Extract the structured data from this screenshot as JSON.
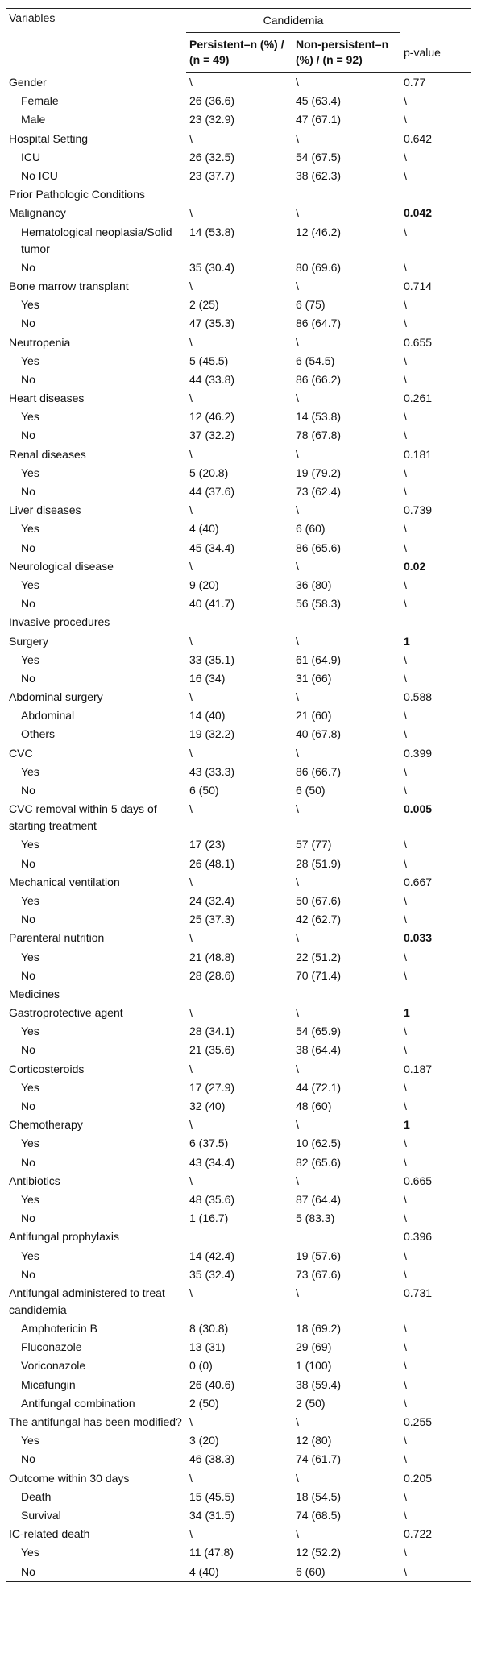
{
  "header": {
    "variables": "Variables",
    "group": "Candidemia",
    "persistent": "Persistent–n (%) / (n = 49)",
    "non_persistent": "Non-persistent–n (%) / (n = 92)",
    "p_value": "p-value"
  },
  "groups": [
    {
      "label": "Gender",
      "persistent": "\\",
      "non_persistent": "\\",
      "p": "0.77",
      "items": [
        {
          "label": "Female",
          "persistent": "26 (36.6)",
          "non_persistent": "45 (63.4)",
          "p": "\\"
        },
        {
          "label": "Male",
          "persistent": "23 (32.9)",
          "non_persistent": "47 (67.1)",
          "p": "\\"
        }
      ]
    },
    {
      "label": "Hospital Setting",
      "persistent": "\\",
      "non_persistent": "\\",
      "p": "0.642",
      "items": [
        {
          "label": "ICU",
          "persistent": "26 (32.5)",
          "non_persistent": "54 (67.5)",
          "p": "\\"
        },
        {
          "label": "No ICU",
          "persistent": "23 (37.7)",
          "non_persistent": "38 (62.3)",
          "p": "\\"
        }
      ]
    },
    {
      "label": "Prior Pathologic Conditions"
    },
    {
      "label": "Malignancy",
      "persistent": "\\",
      "non_persistent": "\\",
      "p": "0.042",
      "bold_p": true,
      "items": [
        {
          "label": "Hematological neoplasia/Solid tumor",
          "persistent": "14 (53.8)",
          "non_persistent": "12 (46.2)",
          "p": "\\"
        },
        {
          "label": "No",
          "persistent": "35 (30.4)",
          "non_persistent": "80 (69.6)",
          "p": "\\"
        }
      ]
    },
    {
      "label": "Bone marrow transplant",
      "persistent": "\\",
      "non_persistent": "\\",
      "p": "0.714",
      "items": [
        {
          "label": "Yes",
          "persistent": "2 (25)",
          "non_persistent": "6 (75)",
          "p": "\\"
        },
        {
          "label": "No",
          "persistent": "47 (35.3)",
          "non_persistent": "86 (64.7)",
          "p": "\\"
        }
      ]
    },
    {
      "label": "Neutropenia",
      "persistent": "\\",
      "non_persistent": "\\",
      "p": "0.655",
      "items": [
        {
          "label": "Yes",
          "persistent": "5 (45.5)",
          "non_persistent": "6 (54.5)",
          "p": "\\"
        },
        {
          "label": "No",
          "persistent": "44 (33.8)",
          "non_persistent": "86 (66.2)",
          "p": "\\"
        }
      ]
    },
    {
      "label": "Heart diseases",
      "persistent": "\\",
      "non_persistent": "\\",
      "p": "0.261",
      "items": [
        {
          "label": "Yes",
          "persistent": "12 (46.2)",
          "non_persistent": "14 (53.8)",
          "p": "\\"
        },
        {
          "label": "No",
          "persistent": "37 (32.2)",
          "non_persistent": "78 (67.8)",
          "p": "\\"
        }
      ]
    },
    {
      "label": "Renal diseases",
      "persistent": "\\",
      "non_persistent": "\\",
      "p": "0.181",
      "items": [
        {
          "label": "Yes",
          "persistent": "5 (20.8)",
          "non_persistent": "19 (79.2)",
          "p": "\\"
        },
        {
          "label": "No",
          "persistent": "44 (37.6)",
          "non_persistent": "73 (62.4)",
          "p": "\\"
        }
      ]
    },
    {
      "label": "Liver diseases",
      "persistent": "\\",
      "non_persistent": "\\",
      "p": "0.739",
      "items": [
        {
          "label": "Yes",
          "persistent": "4 (40)",
          "non_persistent": "6 (60)",
          "p": "\\"
        },
        {
          "label": "No",
          "persistent": "45 (34.4)",
          "non_persistent": "86 (65.6)",
          "p": "\\"
        }
      ]
    },
    {
      "label": "Neurological disease",
      "persistent": "\\",
      "non_persistent": "\\",
      "p": "0.02",
      "bold_p": true,
      "items": [
        {
          "label": "Yes",
          "persistent": "9 (20)",
          "non_persistent": "36 (80)",
          "p": "\\"
        },
        {
          "label": "No",
          "persistent": "40 (41.7)",
          "non_persistent": "56 (58.3)",
          "p": "\\"
        }
      ]
    },
    {
      "label": "Invasive procedures"
    },
    {
      "label": "Surgery",
      "persistent": "\\",
      "non_persistent": "\\",
      "p": "1",
      "bold_p": true,
      "items": [
        {
          "label": "Yes",
          "persistent": "33 (35.1)",
          "non_persistent": "61 (64.9)",
          "p": "\\"
        },
        {
          "label": "No",
          "persistent": "16 (34)",
          "non_persistent": "31 (66)",
          "p": "\\"
        }
      ]
    },
    {
      "label": "Abdominal surgery",
      "persistent": "\\",
      "non_persistent": "\\",
      "p": "0.588",
      "items": [
        {
          "label": "Abdominal",
          "persistent": "14 (40)",
          "non_persistent": "21 (60)",
          "p": "\\"
        },
        {
          "label": "Others",
          "persistent": "19 (32.2)",
          "non_persistent": "40 (67.8)",
          "p": "\\"
        }
      ]
    },
    {
      "label": "CVC",
      "persistent": "\\",
      "non_persistent": "\\",
      "p": "0.399",
      "items": [
        {
          "label": "Yes",
          "persistent": "43 (33.3)",
          "non_persistent": "86 (66.7)",
          "p": "\\"
        },
        {
          "label": "No",
          "persistent": "6 (50)",
          "non_persistent": "6 (50)",
          "p": "\\"
        }
      ]
    },
    {
      "label": "CVC removal within 5 days of starting treatment",
      "persistent": "\\",
      "non_persistent": "\\",
      "p": "0.005",
      "bold_p": true,
      "items": [
        {
          "label": "Yes",
          "persistent": "17 (23)",
          "non_persistent": "57 (77)",
          "p": "\\"
        },
        {
          "label": "No",
          "persistent": "26 (48.1)",
          "non_persistent": "28 (51.9)",
          "p": "\\"
        }
      ]
    },
    {
      "label": "Mechanical ventilation",
      "persistent": "\\",
      "non_persistent": "\\",
      "p": "0.667",
      "items": [
        {
          "label": "Yes",
          "persistent": "24 (32.4)",
          "non_persistent": "50 (67.6)",
          "p": "\\"
        },
        {
          "label": "No",
          "persistent": "25 (37.3)",
          "non_persistent": "42 (62.7)",
          "p": "\\"
        }
      ]
    },
    {
      "label": "Parenteral nutrition",
      "persistent": "\\",
      "non_persistent": "\\",
      "p": "0.033",
      "bold_p": true,
      "items": [
        {
          "label": "Yes",
          "persistent": "21 (48.8)",
          "non_persistent": "22 (51.2)",
          "p": "\\"
        },
        {
          "label": "No",
          "persistent": "28 (28.6)",
          "non_persistent": "70 (71.4)",
          "p": "\\"
        }
      ]
    },
    {
      "label": "Medicines"
    },
    {
      "label": "Gastroprotective agent",
      "persistent": "\\",
      "non_persistent": "\\",
      "p": "1",
      "bold_p": true,
      "items": [
        {
          "label": "Yes",
          "persistent": "28 (34.1)",
          "non_persistent": "54 (65.9)",
          "p": "\\"
        },
        {
          "label": "No",
          "persistent": "21 (35.6)",
          "non_persistent": "38 (64.4)",
          "p": "\\"
        }
      ]
    },
    {
      "label": "Corticosteroids",
      "persistent": "\\",
      "non_persistent": "\\",
      "p": "0.187",
      "items": [
        {
          "label": "Yes",
          "persistent": "17 (27.9)",
          "non_persistent": "44 (72.1)",
          "p": "\\"
        },
        {
          "label": "No",
          "persistent": "32 (40)",
          "non_persistent": "48 (60)",
          "p": "\\"
        }
      ]
    },
    {
      "label": "Chemotherapy",
      "persistent": "\\",
      "non_persistent": "\\",
      "p": "1",
      "bold_p": true,
      "items": [
        {
          "label": "Yes",
          "persistent": "6 (37.5)",
          "non_persistent": "10 (62.5)",
          "p": "\\"
        },
        {
          "label": "No",
          "persistent": "43 (34.4)",
          "non_persistent": "82 (65.6)",
          "p": "\\"
        }
      ]
    },
    {
      "label": "Antibiotics",
      "persistent": "\\",
      "non_persistent": "\\",
      "p": "0.665",
      "items": [
        {
          "label": "Yes",
          "persistent": "48 (35.6)",
          "non_persistent": "87 (64.4)",
          "p": "\\"
        },
        {
          "label": "No",
          "persistent": "1 (16.7)",
          "non_persistent": "5 (83.3)",
          "p": "\\"
        }
      ]
    },
    {
      "label": "Antifungal prophylaxis",
      "p": "0.396",
      "items": [
        {
          "label": "Yes",
          "persistent": "14 (42.4)",
          "non_persistent": "19 (57.6)",
          "p": "\\"
        },
        {
          "label": "No",
          "persistent": "35 (32.4)",
          "non_persistent": "73 (67.6)",
          "p": "\\"
        }
      ]
    },
    {
      "label": "Antifungal administered to treat candidemia",
      "persistent": "\\",
      "non_persistent": "\\",
      "p": "0.731",
      "items": [
        {
          "label": "Amphotericin B",
          "persistent": "8 (30.8)",
          "non_persistent": "18 (69.2)",
          "p": "\\"
        },
        {
          "label": "Fluconazole",
          "persistent": "13 (31)",
          "non_persistent": "29 (69)",
          "p": "\\"
        },
        {
          "label": "Voriconazole",
          "persistent": "0 (0)",
          "non_persistent": "1 (100)",
          "p": "\\"
        },
        {
          "label": "Micafungin",
          "persistent": "26 (40.6)",
          "non_persistent": "38 (59.4)",
          "p": "\\"
        },
        {
          "label": "Antifungal combination",
          "persistent": "2 (50)",
          "non_persistent": "2 (50)",
          "p": "\\"
        }
      ]
    },
    {
      "label": "The antifungal has been modified?",
      "persistent": "\\",
      "non_persistent": "\\",
      "p": "0.255",
      "items": [
        {
          "label": "Yes",
          "persistent": "3 (20)",
          "non_persistent": "12 (80)",
          "p": "\\"
        },
        {
          "label": "No",
          "persistent": "46 (38.3)",
          "non_persistent": "74 (61.7)",
          "p": "\\"
        }
      ]
    },
    {
      "label": "Outcome within 30 days",
      "persistent": "\\",
      "non_persistent": "\\",
      "p": "0.205",
      "items": [
        {
          "label": "Death",
          "persistent": "15 (45.5)",
          "non_persistent": "18 (54.5)",
          "p": "\\"
        },
        {
          "label": "Survival",
          "persistent": "34 (31.5)",
          "non_persistent": "74 (68.5)",
          "p": "\\"
        }
      ]
    },
    {
      "label": "IC-related death",
      "persistent": "\\",
      "non_persistent": "\\",
      "p": "0.722",
      "items": [
        {
          "label": "Yes",
          "persistent": "11 (47.8)",
          "non_persistent": "12 (52.2)",
          "p": "\\"
        },
        {
          "label": "No",
          "persistent": "4 (40)",
          "non_persistent": "6 (60)",
          "p": "\\"
        }
      ]
    }
  ]
}
